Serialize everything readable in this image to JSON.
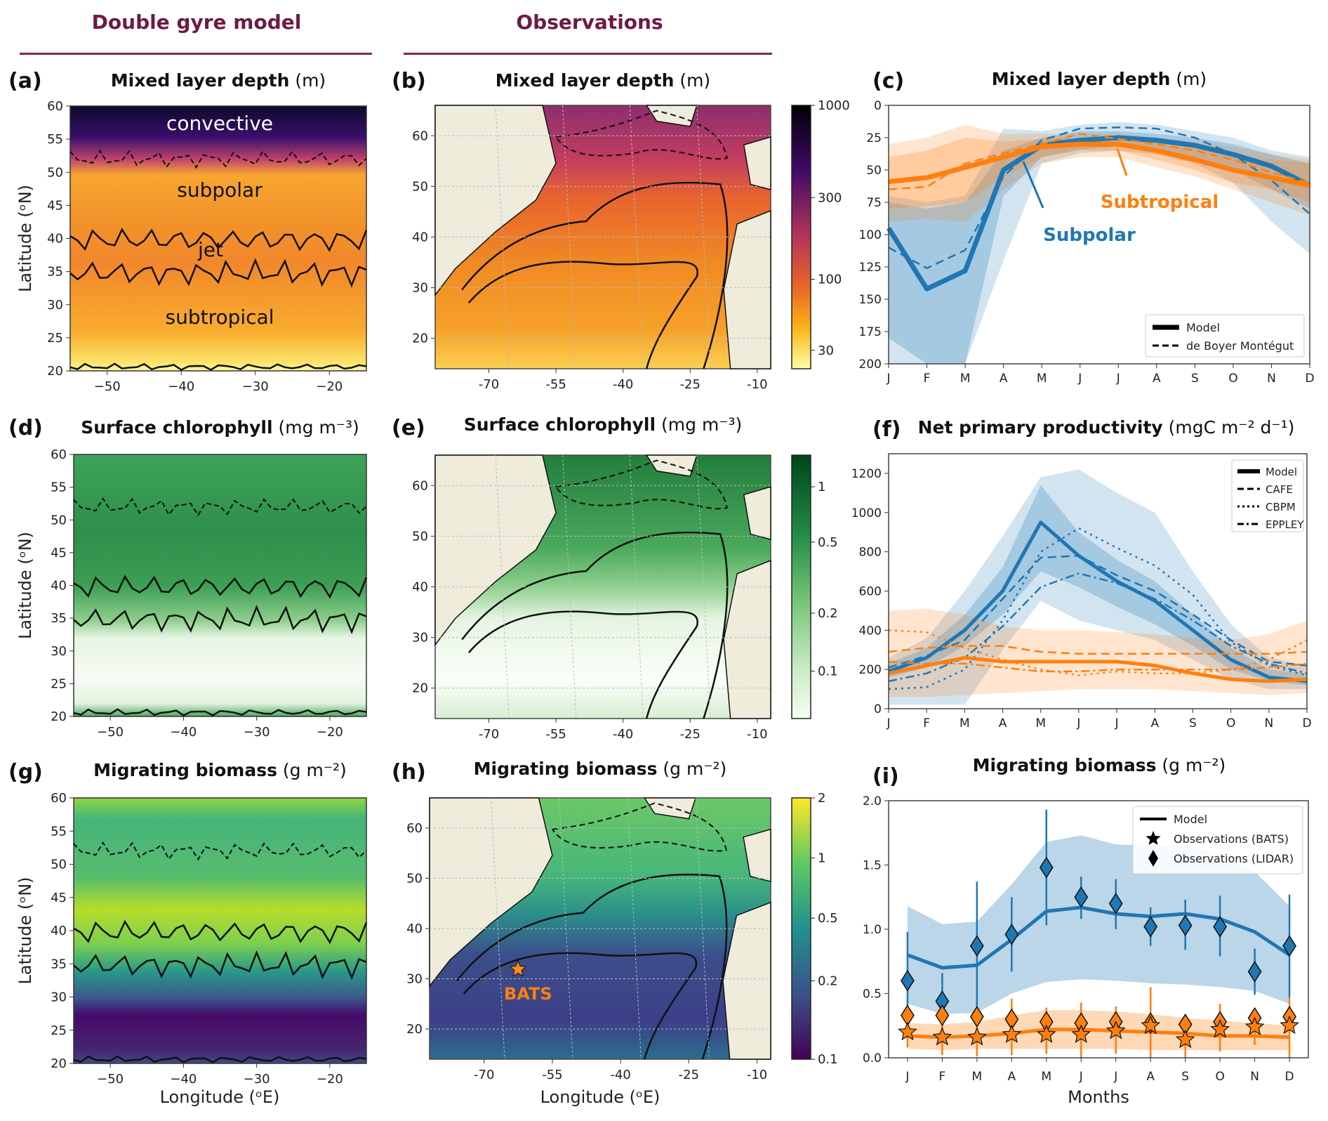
{
  "header": {
    "model_column": "Double gyre model",
    "obs_column": "Observations",
    "accent_color": "#6e1a46"
  },
  "panels": {
    "a": {
      "label": "(a)",
      "title": "Mixed layer depth",
      "unit": "(m)"
    },
    "b": {
      "label": "(b)",
      "title": "Mixed layer depth",
      "unit": "(m)"
    },
    "c": {
      "label": "(c)",
      "title": "Mixed layer depth",
      "unit": "(m)"
    },
    "d": {
      "label": "(d)",
      "title": "Surface chlorophyll",
      "unit": "(mg m⁻³)"
    },
    "e": {
      "label": "(e)",
      "title": "Surface chlorophyll",
      "unit": "(mg m⁻³)"
    },
    "f": {
      "label": "(f)",
      "title": "Net primary productivity",
      "unit": "(mgC m⁻² d⁻¹)"
    },
    "g": {
      "label": "(g)",
      "title": "Migrating biomass",
      "unit": "(g m⁻²)"
    },
    "h": {
      "label": "(h)",
      "title": "Migrating biomass",
      "unit": "(g m⁻²)"
    },
    "i": {
      "label": "(i)",
      "title": "Migrating biomass",
      "unit": "(g m⁻²)"
    }
  },
  "maps": {
    "model_lat_ticks": [
      "60",
      "55",
      "50",
      "45",
      "40",
      "35",
      "30",
      "25",
      "20"
    ],
    "model_lon_ticks": [
      "−50",
      "−40",
      "−30",
      "−20"
    ],
    "obs_lat_ticks": [
      "60",
      "50",
      "40",
      "30",
      "20"
    ],
    "obs_lon_ticks": [
      "-70",
      "-55",
      "-40",
      "-25",
      "-10"
    ],
    "ylabel": "Latitude (ᵒN)",
    "xlabel": "Longitude (ᵒE)",
    "region_labels": [
      "convective",
      "subpolar",
      "jet",
      "subtropical"
    ],
    "bats_label": "BATS",
    "colorbars": {
      "mld": {
        "ticks": [
          "1000",
          "300",
          "100",
          "30"
        ],
        "colormap": "inferno (reversed)"
      },
      "chl": {
        "ticks": [
          "1",
          "0.5",
          "0.2",
          "0.1"
        ],
        "colormap": "greens"
      },
      "biomass": {
        "ticks": [
          "2",
          "1",
          "0.5",
          "0.2",
          "0.1"
        ],
        "colormap": "viridis"
      }
    }
  },
  "chart_data": [
    {
      "id": "c",
      "type": "line",
      "title": "Mixed layer depth (m)",
      "categories": [
        "J",
        "F",
        "M",
        "A",
        "M",
        "J",
        "J",
        "A",
        "S",
        "O",
        "N",
        "D"
      ],
      "ylim": [
        200,
        0
      ],
      "yticks": [
        0,
        25,
        50,
        75,
        100,
        125,
        150,
        175,
        200
      ],
      "series": [
        {
          "name": "Subpolar Model",
          "style": "solid",
          "color": "#1f77b4",
          "values": [
            95,
            142,
            128,
            50,
            31,
            27,
            25,
            27,
            31,
            38,
            47,
            62
          ],
          "band_inner": [
            [
              75,
              180
            ],
            [
              80,
              200
            ],
            [
              75,
              200
            ],
            [
              35,
              70
            ],
            [
              25,
              40
            ],
            [
              20,
              34
            ],
            [
              20,
              32
            ],
            [
              22,
              34
            ],
            [
              25,
              40
            ],
            [
              30,
              50
            ],
            [
              38,
              65
            ],
            [
              45,
              80
            ]
          ],
          "band_outer": [
            [
              70,
              200
            ],
            [
              75,
              200
            ],
            [
              70,
              200
            ],
            [
              18,
              120
            ],
            [
              20,
              45
            ],
            [
              15,
              37
            ],
            [
              13,
              35
            ],
            [
              15,
              38
            ],
            [
              20,
              45
            ],
            [
              25,
              60
            ],
            [
              35,
              90
            ],
            [
              40,
              115
            ]
          ]
        },
        {
          "name": "Subpolar de Boyer Montégut",
          "style": "dashed",
          "color": "#1f77b4",
          "values": [
            110,
            126,
            112,
            55,
            27,
            18,
            17,
            18,
            25,
            38,
            58,
            84
          ]
        },
        {
          "name": "Subtropical Model",
          "style": "solid",
          "color": "#ff7f0e",
          "values": [
            59,
            56,
            48,
            40,
            32,
            30,
            30,
            35,
            42,
            50,
            56,
            62
          ],
          "band_inner": [
            [
              40,
              80
            ],
            [
              35,
              78
            ],
            [
              25,
              75
            ],
            [
              28,
              55
            ],
            [
              26,
              40
            ],
            [
              25,
              35
            ],
            [
              25,
              35
            ],
            [
              28,
              42
            ],
            [
              33,
              50
            ],
            [
              38,
              60
            ],
            [
              42,
              65
            ],
            [
              45,
              75
            ]
          ],
          "band_outer": [
            [
              30,
              90
            ],
            [
              25,
              88
            ],
            [
              15,
              90
            ],
            [
              22,
              65
            ],
            [
              22,
              45
            ],
            [
              22,
              40
            ],
            [
              22,
              40
            ],
            [
              25,
              48
            ],
            [
              28,
              55
            ],
            [
              32,
              65
            ],
            [
              38,
              75
            ],
            [
              42,
              85
            ]
          ]
        },
        {
          "name": "Subtropical de Boyer Montégut",
          "style": "dashed",
          "color": "#ff7f0e",
          "values": [
            65,
            63,
            45,
            37,
            30,
            22,
            26,
            30,
            35,
            42,
            52,
            60
          ]
        }
      ],
      "annotations": [
        "Subpolar",
        "Subtropical"
      ],
      "legend": {
        "position": "bottom-right",
        "entries": [
          "Model",
          "de Boyer Montégut"
        ]
      }
    },
    {
      "id": "f",
      "type": "line",
      "title": "Net primary productivity (mgC m⁻² d⁻¹)",
      "categories": [
        "J",
        "F",
        "M",
        "A",
        "M",
        "J",
        "J",
        "A",
        "S",
        "O",
        "N",
        "D"
      ],
      "ylim": [
        0,
        1300
      ],
      "yticks": [
        0,
        200,
        400,
        600,
        800,
        1000,
        1200
      ],
      "series": [
        {
          "name": "Subpolar Model",
          "style": "solid",
          "color": "#1f77b4",
          "values": [
            190,
            260,
            400,
            600,
            950,
            780,
            650,
            550,
            400,
            250,
            160,
            140
          ],
          "band_inner": [
            [
              160,
              230
            ],
            [
              210,
              310
            ],
            [
              320,
              480
            ],
            [
              480,
              720
            ],
            [
              700,
              1140
            ],
            [
              620,
              900
            ],
            [
              520,
              760
            ],
            [
              430,
              650
            ],
            [
              320,
              480
            ],
            [
              200,
              310
            ],
            [
              140,
              200
            ],
            [
              120,
              180
            ]
          ],
          "band_outer": [
            [
              20,
              260
            ],
            [
              20,
              360
            ],
            [
              20,
              600
            ],
            [
              300,
              880
            ],
            [
              550,
              1180
            ],
            [
              450,
              1220
            ],
            [
              400,
              1100
            ],
            [
              350,
              1000
            ],
            [
              250,
              700
            ],
            [
              150,
              430
            ],
            [
              100,
              260
            ],
            [
              100,
              220
            ]
          ]
        },
        {
          "name": "Subpolar CAFE",
          "style": "dashed",
          "color": "#1f77b4",
          "values": [
            210,
            270,
            350,
            560,
            770,
            780,
            680,
            600,
            480,
            350,
            240,
            220
          ]
        },
        {
          "name": "Subpolar CBPM",
          "style": "dotted",
          "color": "#1f77b4",
          "values": [
            100,
            110,
            200,
            450,
            800,
            920,
            820,
            730,
            580,
            340,
            220,
            170
          ]
        },
        {
          "name": "Subpolar EPPLEY",
          "style": "dashdot",
          "color": "#1f77b4",
          "values": [
            140,
            180,
            260,
            420,
            620,
            690,
            640,
            560,
            450,
            320,
            230,
            180
          ]
        },
        {
          "name": "Subtropical Model",
          "style": "solid",
          "color": "#ff7f0e",
          "values": [
            180,
            220,
            260,
            240,
            240,
            240,
            240,
            220,
            180,
            150,
            140,
            150
          ],
          "band_outer": [
            [
              60,
              500
            ],
            [
              60,
              510
            ],
            [
              70,
              480
            ],
            [
              80,
              420
            ],
            [
              90,
              400
            ],
            [
              100,
              400
            ],
            [
              100,
              390
            ],
            [
              100,
              380
            ],
            [
              90,
              360
            ],
            [
              80,
              350
            ],
            [
              70,
              380
            ],
            [
              80,
              450
            ]
          ]
        },
        {
          "name": "Subtropical CAFE",
          "style": "dashed",
          "color": "#ff7f0e",
          "values": [
            290,
            310,
            320,
            320,
            290,
            280,
            280,
            280,
            280,
            280,
            280,
            290
          ]
        },
        {
          "name": "Subtropical CBPM",
          "style": "dotted",
          "color": "#ff7f0e",
          "values": [
            400,
            390,
            310,
            250,
            200,
            170,
            190,
            180,
            180,
            200,
            250,
            350
          ]
        },
        {
          "name": "Subtropical EPPLEY",
          "style": "dashdot",
          "color": "#ff7f0e",
          "values": [
            240,
            230,
            230,
            210,
            190,
            190,
            200,
            200,
            200,
            200,
            210,
            230
          ]
        }
      ],
      "legend": {
        "position": "top-right",
        "entries": [
          "Model",
          "CAFE",
          "CBPM",
          "EPPLEY"
        ]
      }
    },
    {
      "id": "i",
      "type": "line",
      "title": "Migrating biomass (g m⁻²)",
      "xlabel": "Months",
      "categories": [
        "J",
        "F",
        "M",
        "A",
        "M",
        "J",
        "J",
        "A",
        "S",
        "O",
        "N",
        "D"
      ],
      "ylim": [
        0,
        2.0
      ],
      "yticks": [
        0.0,
        0.5,
        1.0,
        1.5,
        2.0
      ],
      "series": [
        {
          "name": "Subpolar Model",
          "style": "solid",
          "color": "#1f77b4",
          "values": [
            0.8,
            0.7,
            0.72,
            0.92,
            1.14,
            1.17,
            1.12,
            1.1,
            1.12,
            1.08,
            0.98,
            0.8
          ],
          "band": [
            [
              0.42,
              1.18
            ],
            [
              0.34,
              1.04
            ],
            [
              0.35,
              1.06
            ],
            [
              0.5,
              1.35
            ],
            [
              0.59,
              1.68
            ],
            [
              0.61,
              1.73
            ],
            [
              0.6,
              1.66
            ],
            [
              0.58,
              1.65
            ],
            [
              0.57,
              1.65
            ],
            [
              0.55,
              1.58
            ],
            [
              0.52,
              1.45
            ],
            [
              0.42,
              1.18
            ]
          ]
        },
        {
          "name": "Subtropical Model",
          "style": "solid",
          "color": "#ff7f0e",
          "values": [
            0.17,
            0.16,
            0.17,
            0.19,
            0.22,
            0.22,
            0.21,
            0.2,
            0.19,
            0.17,
            0.17,
            0.16
          ],
          "band": [
            [
              0.07,
              0.27
            ],
            [
              0.06,
              0.26
            ],
            [
              0.07,
              0.28
            ],
            [
              0.07,
              0.33
            ],
            [
              0.07,
              0.37
            ],
            [
              0.07,
              0.37
            ],
            [
              0.07,
              0.36
            ],
            [
              0.06,
              0.34
            ],
            [
              0.06,
              0.31
            ],
            [
              0.06,
              0.29
            ],
            [
              0.06,
              0.27
            ],
            [
              0.06,
              0.25
            ]
          ]
        }
      ],
      "observations": {
        "subpolar_lidar": {
          "color": "#1f77b4",
          "marker": "diamond",
          "values": [
            0.6,
            0.44,
            0.87,
            0.96,
            1.48,
            1.25,
            1.2,
            1.02,
            1.03,
            1.02,
            0.67,
            0.87
          ],
          "err": [
            [
              0.37,
              0.98
            ],
            [
              0.22,
              0.66
            ],
            [
              0.36,
              1.37
            ],
            [
              0.67,
              1.25
            ],
            [
              1.03,
              1.93
            ],
            [
              1.08,
              1.41
            ],
            [
              1.0,
              1.39
            ],
            [
              0.87,
              1.17
            ],
            [
              0.84,
              1.23
            ],
            [
              0.79,
              1.26
            ],
            [
              0.49,
              0.85
            ],
            [
              0.47,
              1.27
            ]
          ]
        },
        "subtropical_lidar": {
          "color": "#ff7f0e",
          "marker": "diamond",
          "values": [
            0.33,
            0.33,
            0.32,
            0.3,
            0.28,
            0.27,
            0.28,
            0.27,
            0.26,
            0.28,
            0.31,
            0.32
          ],
          "err": [
            [
              0.08,
              0.33
            ],
            [
              0.02,
              0.33
            ],
            [
              0.01,
              0.32
            ],
            [
              0.02,
              0.46
            ],
            [
              0.03,
              0.39
            ],
            [
              0.0,
              0.43
            ],
            [
              0.03,
              0.4
            ],
            [
              0.0,
              0.55
            ],
            [
              0.0,
              0.26
            ],
            [
              0.05,
              0.42
            ],
            [
              0.1,
              0.38
            ],
            [
              0.0,
              0.47
            ]
          ]
        },
        "subtropical_bats": {
          "color": "#ff7f0e",
          "marker": "star",
          "values": [
            0.2,
            0.16,
            0.16,
            0.18,
            0.18,
            0.18,
            0.21,
            0.25,
            0.14,
            0.22,
            0.24,
            0.25
          ]
        }
      },
      "legend": {
        "position": "top-right",
        "entries": [
          "Model",
          "Observations (BATS)",
          "Observations (LIDAR)"
        ]
      }
    }
  ]
}
